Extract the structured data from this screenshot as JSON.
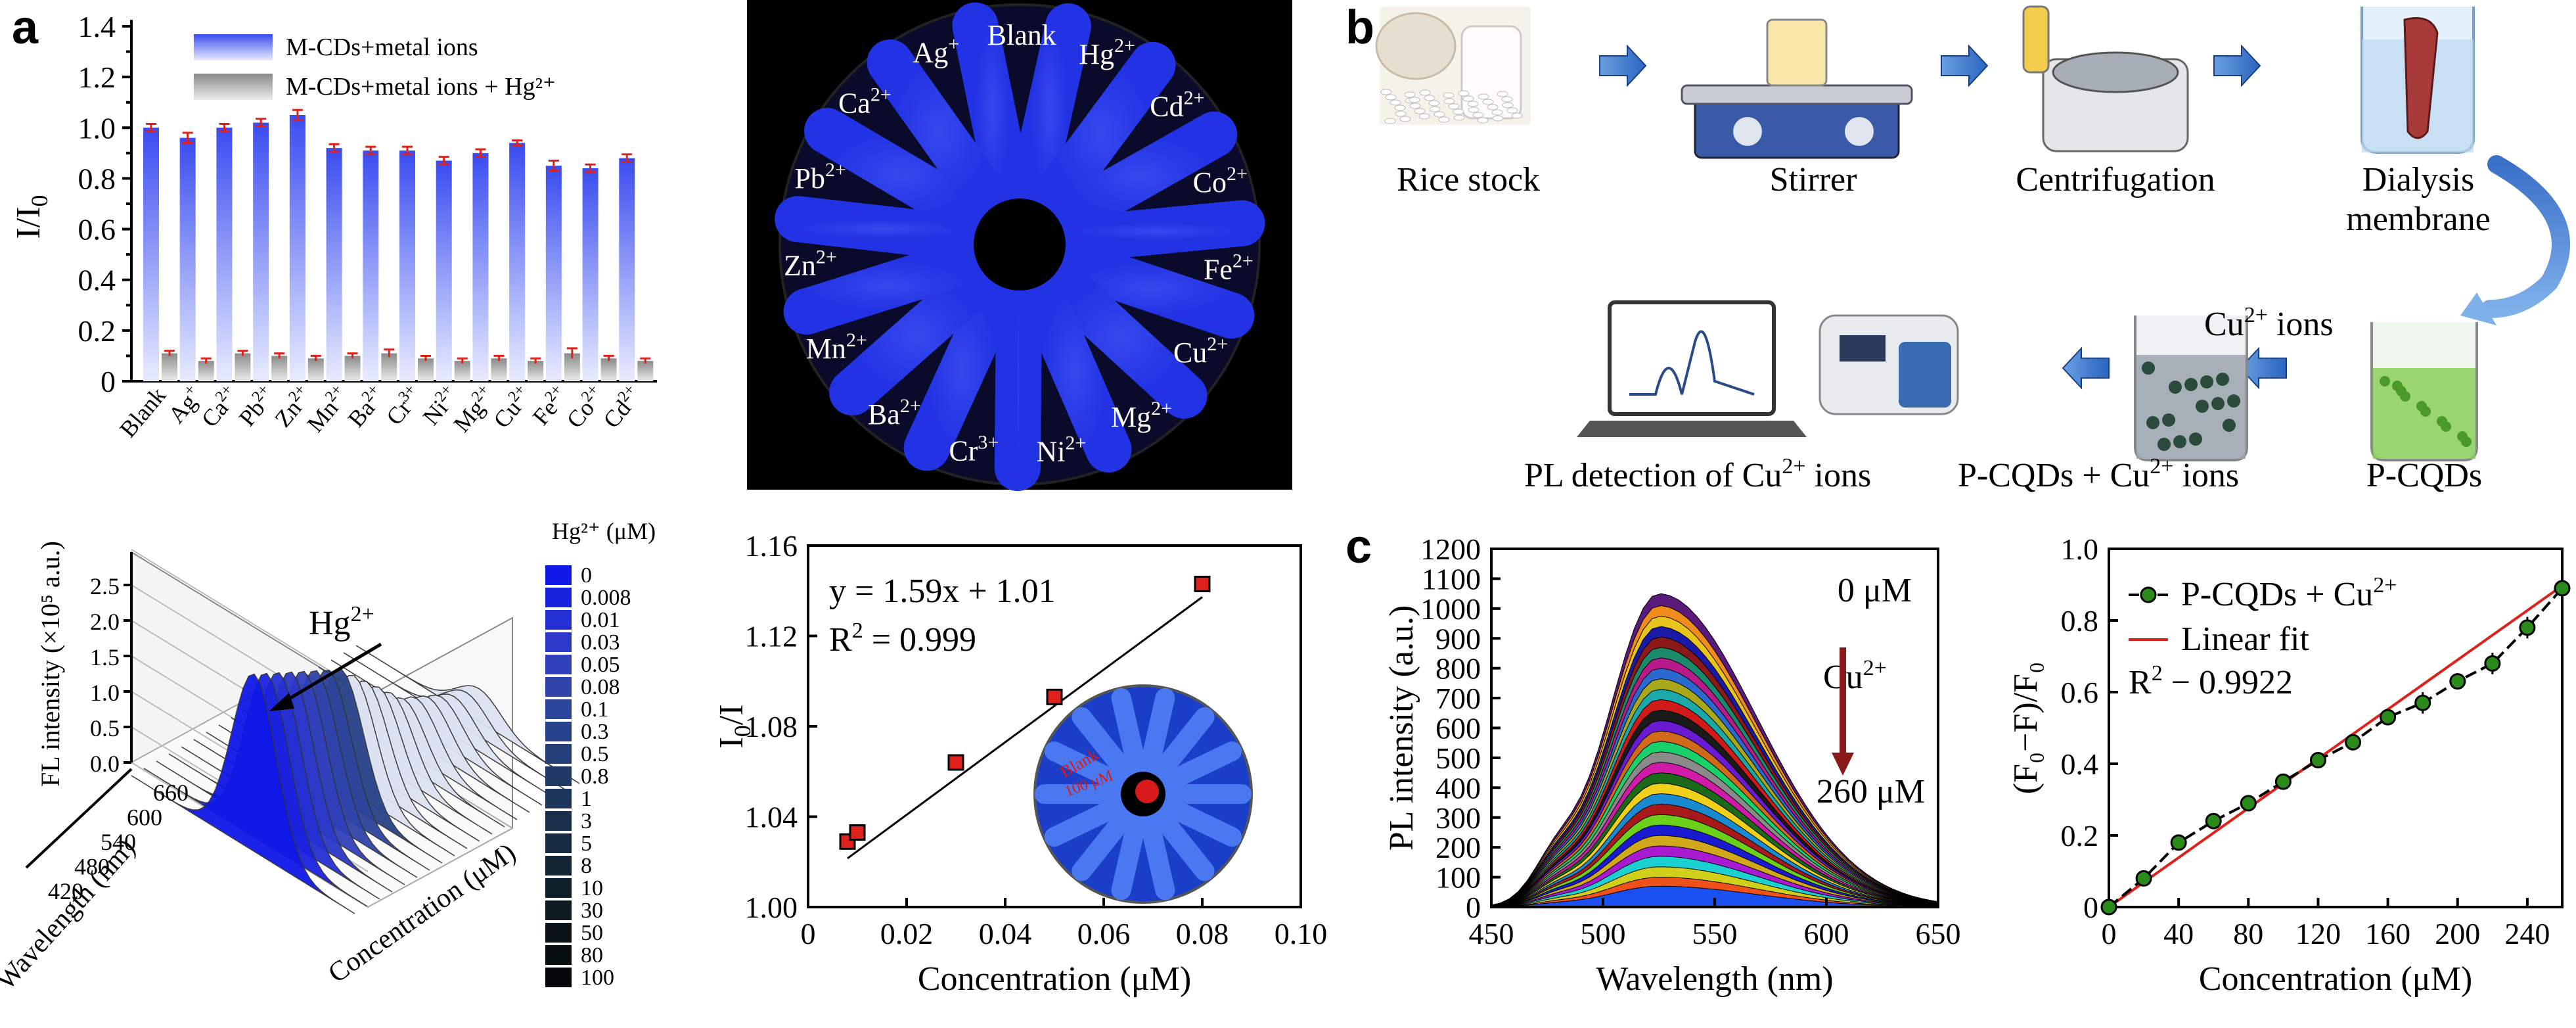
{
  "letters": {
    "a": "a",
    "b": "b",
    "c": "c"
  },
  "panel_a_bar": {
    "chart_data": {
      "type": "bar",
      "categories": [
        "Blank",
        "Ag+",
        "Ca2+",
        "Pb2+",
        "Zn2+",
        "Mn2+",
        "Ba2+",
        "Cr3+",
        "Ni2+",
        "Mg2+",
        "Cu2+",
        "Fe2+",
        "Co2+",
        "Cd2+"
      ],
      "tick_labels": [
        {
          "base": "Blank",
          "sup": ""
        },
        {
          "base": "Ag",
          "sup": "+"
        },
        {
          "base": "Ca",
          "sup": "2+"
        },
        {
          "base": "Pb",
          "sup": "2+"
        },
        {
          "base": "Zn",
          "sup": "2+"
        },
        {
          "base": "Mn",
          "sup": "2+"
        },
        {
          "base": "Ba",
          "sup": "2+"
        },
        {
          "base": "Cr",
          "sup": "3+"
        },
        {
          "base": "Ni",
          "sup": "2+"
        },
        {
          "base": "Mg",
          "sup": "2+"
        },
        {
          "base": "Cu",
          "sup": "2+"
        },
        {
          "base": "Fe",
          "sup": "2+"
        },
        {
          "base": "Co",
          "sup": "2+"
        },
        {
          "base": "Cd",
          "sup": "2+"
        }
      ],
      "series": [
        {
          "name": "M-CDs+metal ions",
          "values": [
            1.0,
            0.96,
            1.0,
            1.02,
            1.05,
            0.92,
            0.91,
            0.91,
            0.87,
            0.9,
            0.94,
            0.85,
            0.84,
            0.88
          ],
          "errors": [
            0.015,
            0.02,
            0.015,
            0.015,
            0.02,
            0.015,
            0.015,
            0.015,
            0.015,
            0.015,
            0.01,
            0.02,
            0.015,
            0.015
          ]
        },
        {
          "name": "M-CDs+metal ions + Hg²⁺",
          "values": [
            0.11,
            0.08,
            0.11,
            0.1,
            0.09,
            0.1,
            0.11,
            0.09,
            0.08,
            0.09,
            0.08,
            0.11,
            0.09,
            0.08
          ],
          "errors": [
            0.01,
            0.01,
            0.01,
            0.01,
            0.01,
            0.01,
            0.015,
            0.01,
            0.01,
            0.01,
            0.01,
            0.02,
            0.01,
            0.01
          ]
        }
      ],
      "ylabel_base": "I/I",
      "ylabel_sub": "0",
      "ylim": [
        0,
        1.4
      ],
      "yticks": [
        "0",
        "0.2",
        "0.4",
        "0.6",
        "0.8",
        "1.0",
        "1.2",
        "1.4"
      ],
      "colors": {
        "blue": "#3a4cf0",
        "gray": "#8a8a8a",
        "error": "#e0201b"
      }
    }
  },
  "panel_a_photo": {
    "labels": [
      {
        "base": "Blank",
        "sup": ""
      },
      {
        "base": "Hg",
        "sup": "2+"
      },
      {
        "base": "Cd",
        "sup": "2+"
      },
      {
        "base": "Co",
        "sup": "2+"
      },
      {
        "base": "Fe",
        "sup": "2+"
      },
      {
        "base": "Cu",
        "sup": "2+"
      },
      {
        "base": "Mg",
        "sup": "2+"
      },
      {
        "base": "Ni",
        "sup": "2+"
      },
      {
        "base": "Cr",
        "sup": "3+"
      },
      {
        "base": "Ba",
        "sup": "2+"
      },
      {
        "base": "Mn",
        "sup": "2+"
      },
      {
        "base": "Zn",
        "sup": "2+"
      },
      {
        "base": "Pb",
        "sup": "2+"
      },
      {
        "base": "Ca",
        "sup": "2+"
      },
      {
        "base": "Ag",
        "sup": "+"
      }
    ]
  },
  "panel_a_3d": {
    "chart_data": {
      "type": "area",
      "zlabel": "FL intensity (×10⁵ a.u.)",
      "zticks": [
        "0.0",
        "0.5",
        "1.0",
        "1.5",
        "2.0",
        "2.5"
      ],
      "wavelength_label": "Wavelength (nm)",
      "wavelength_ticks": [
        "420",
        "480",
        "540",
        "600",
        "660"
      ],
      "conc_label": "Concentration (μM)",
      "arrow_label_base": "Hg",
      "arrow_label_sup": "2+",
      "legend_title": "Hg²⁺ (μM)",
      "concentrations": [
        "0",
        "0.008",
        "0.01",
        "0.03",
        "0.05",
        "0.08",
        "0.1",
        "0.3",
        "0.5",
        "0.8",
        "1",
        "3",
        "5",
        "8",
        "10",
        "30",
        "50",
        "80",
        "100"
      ],
      "peak_intensities": [
        2.7,
        2.6,
        2.5,
        2.4,
        2.3,
        2.2,
        2.1,
        2.0,
        1.8,
        1.6,
        1.4,
        1.2,
        1.0,
        0.9,
        0.8,
        0.7,
        0.6,
        0.55,
        0.5
      ],
      "legend_colors": [
        "#1018e8",
        "#1a22e0",
        "#2530d4",
        "#2c38c8",
        "#3040bb",
        "#3044ab",
        "#2c449b",
        "#284289",
        "#243e78",
        "#203a68",
        "#1c3559",
        "#19304b",
        "#162b3f",
        "#132534",
        "#10202a",
        "#0d1a21",
        "#0a1418",
        "#080f11",
        "#04080a"
      ]
    }
  },
  "panel_a_linear": {
    "chart_data": {
      "type": "scatter",
      "x": [
        0.008,
        0.01,
        0.03,
        0.05,
        0.08
      ],
      "y": [
        1.029,
        1.033,
        1.064,
        1.093,
        1.143
      ],
      "fit": {
        "slope": 1.59,
        "intercept": 1.01
      },
      "equation": "y = 1.59x + 1.01",
      "r2_base": "R",
      "r2_sup": "2",
      "r2_rest": " = 0.999",
      "xlabel": "Concentration (μM)",
      "ylabel_base": "I",
      "ylabel_sub": "0",
      "ylabel_rest": "/I",
      "xlim": [
        0,
        0.1
      ],
      "ylim": [
        1.0,
        1.16
      ],
      "xticks": [
        "0",
        "0.02",
        "0.04",
        "0.06",
        "0.08",
        "0.10"
      ],
      "yticks": [
        "1.00",
        "1.04",
        "1.08",
        "1.12",
        "1.16"
      ],
      "inset_text": [
        "Blank",
        "100 μM"
      ]
    }
  },
  "panel_b": {
    "steps": [
      "Rice stock",
      "Stirrer",
      "Centrifugation",
      "Dialysis",
      "membrane",
      "P-CQDs"
    ],
    "cu_ions_base": "Cu",
    "cu_ions_sup": "2+",
    "cu_ions_rest": " ions",
    "pcqds_cu": {
      "base": "P-CQDs + Cu",
      "sup": "2+",
      "rest": " ions"
    },
    "pl_detect": {
      "base": "PL detection of Cu",
      "sup": "2+",
      "rest": " ions"
    }
  },
  "panel_c_spectra": {
    "chart_data": {
      "type": "line",
      "xlabel": "Wavelength (nm)",
      "ylabel": "PL intensity (a.u.)",
      "xlim": [
        450,
        650
      ],
      "ylim": [
        0,
        1200
      ],
      "xticks": [
        "450",
        "500",
        "550",
        "600",
        "650"
      ],
      "yticks": [
        "0",
        "100",
        "200",
        "300",
        "400",
        "500",
        "600",
        "700",
        "800",
        "900",
        "1000",
        "1100",
        "1200"
      ],
      "peak_nm": 525,
      "peak_values": [
        1050,
        1010,
        975,
        940,
        905,
        870,
        835,
        800,
        765,
        730,
        695,
        660,
        625,
        590,
        555,
        520,
        485,
        450,
        415,
        380,
        345,
        310,
        275,
        240,
        205,
        170,
        135,
        100,
        70
      ],
      "series_colors": [
        "#5a1a7a",
        "#f08c1c",
        "#e8c41c",
        "#1a1aa8",
        "#8a1a1a",
        "#1a8a6a",
        "#b81a8a",
        "#2a6ad0",
        "#a8a81a",
        "#1aa8a8",
        "#d01a1a",
        "#1a1a1a",
        "#6a1ad0",
        "#d06a1a",
        "#1ad06a",
        "#8a8a8a",
        "#d01aa8",
        "#1a6a1a",
        "#f0d01a",
        "#1a8ad0",
        "#a81a1a",
        "#6ad01a",
        "#1a1ad0",
        "#d0a81a",
        "#a81ad0",
        "#1ad0d0",
        "#d0d01a",
        "#f0501a",
        "#1a50f0"
      ],
      "top_label": "0 μM",
      "mid_label_base": "Cu",
      "mid_label_sup": "2+",
      "bottom_label": "260 μM"
    }
  },
  "panel_c_linear": {
    "chart_data": {
      "type": "scatter",
      "x": [
        0,
        20,
        40,
        60,
        80,
        100,
        120,
        140,
        160,
        180,
        200,
        220,
        240,
        260
      ],
      "y": [
        0,
        0.08,
        0.18,
        0.24,
        0.29,
        0.35,
        0.41,
        0.46,
        0.53,
        0.57,
        0.63,
        0.68,
        0.78,
        0.89
      ],
      "errors": [
        0,
        0.01,
        0.01,
        0.01,
        0.01,
        0.01,
        0.01,
        0.02,
        0.02,
        0.03,
        0.02,
        0.03,
        0.03,
        0.03
      ],
      "fit": {
        "slope": 0.00345,
        "intercept": 0
      },
      "series_names": {
        "points_base": "P-CQDs + Cu",
        "points_sup": "2+",
        "fit": "Linear fit"
      },
      "r2_base": "R",
      "r2_sup": "2",
      "r2_rest": " − 0.9922",
      "xlabel": "Concentration (μM)",
      "ylabel": "(F₀−F)/F₀",
      "xlim": [
        0,
        260
      ],
      "ylim": [
        0,
        1.0
      ],
      "xticks": [
        "0",
        "40",
        "80",
        "120",
        "160",
        "200",
        "240"
      ],
      "yticks": [
        "0",
        "0.2",
        "0.4",
        "0.6",
        "0.8",
        "1.0"
      ],
      "colors": {
        "points": "#2a8a1a",
        "fit": "#e0201b"
      }
    }
  }
}
